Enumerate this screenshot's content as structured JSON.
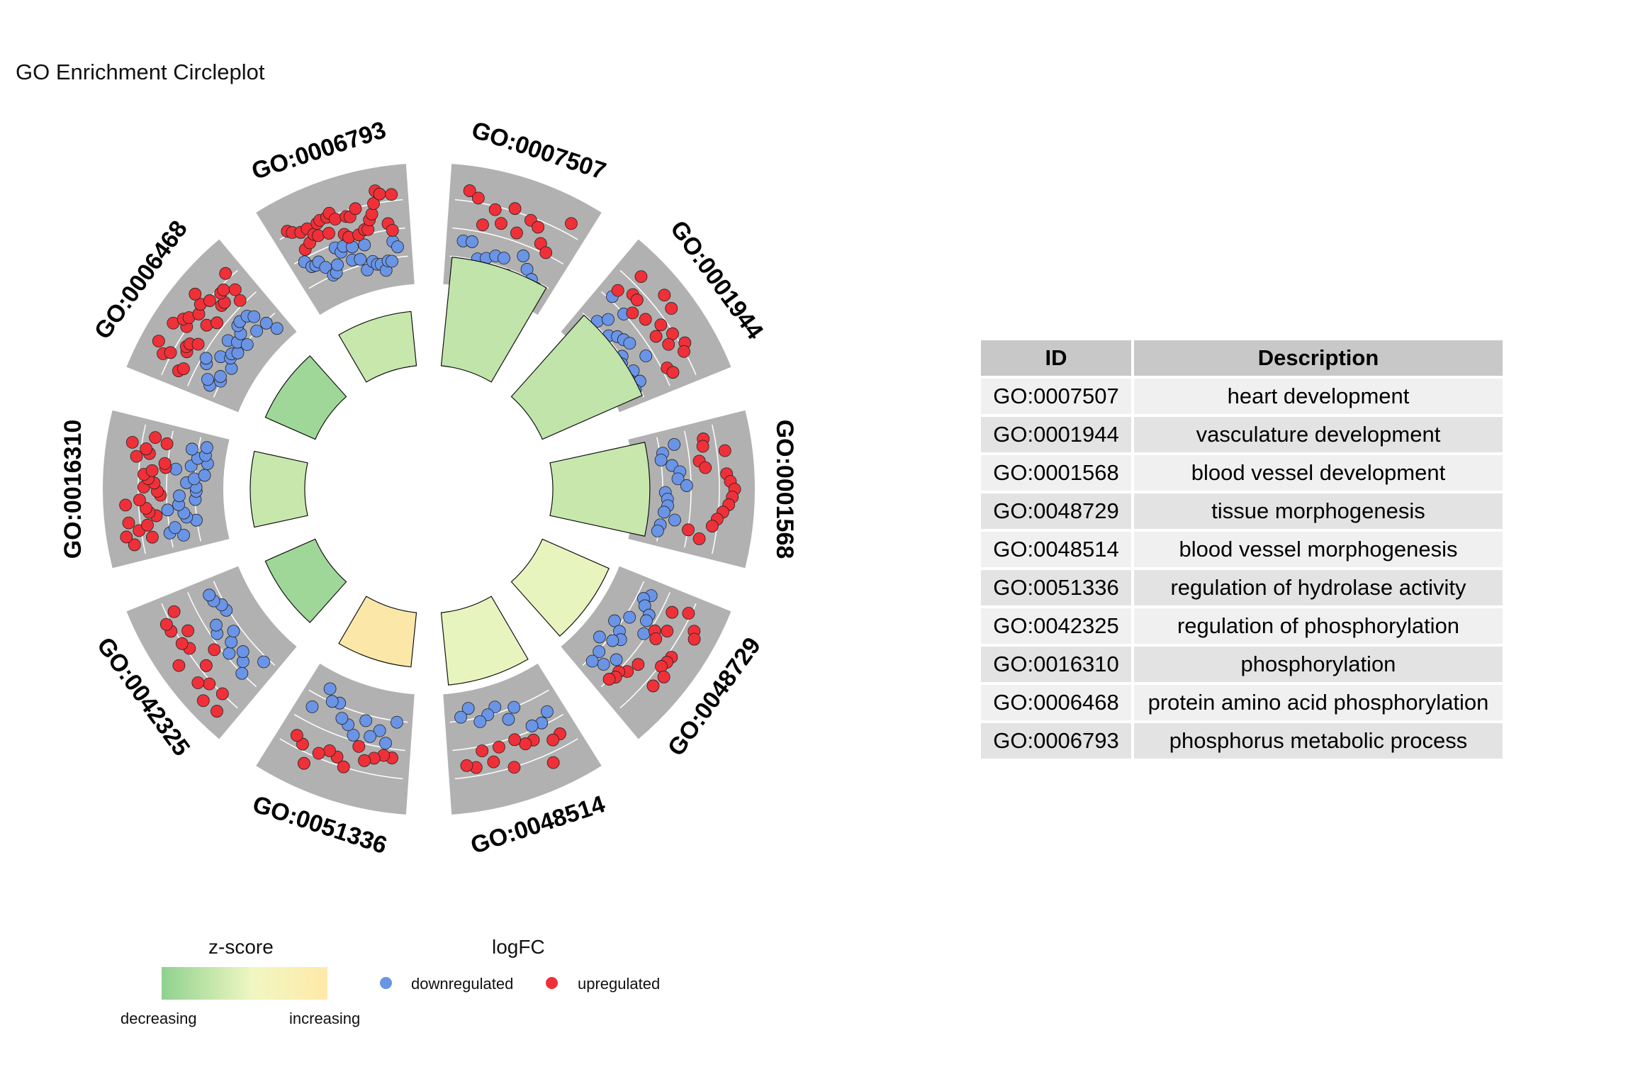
{
  "title": "GO Enrichment Circleplot",
  "colors": {
    "up": "#f03038",
    "down": "#6a94e6",
    "track_bg": "#b1b1b1",
    "zscore_low": "#8fd18f",
    "zscore_mid": "#f0f7c2",
    "zscore_high": "#ffe3a0"
  },
  "chart_data": {
    "type": "circleplot",
    "title": "GO Enrichment Circleplot",
    "terms": [
      {
        "id": "GO:0007507",
        "zscore": -0.6,
        "bar": 0.9,
        "up": 12,
        "down": 11
      },
      {
        "id": "GO:0001944",
        "zscore": -0.6,
        "bar": 0.9,
        "up": 16,
        "down": 15
      },
      {
        "id": "GO:0001568",
        "zscore": -0.5,
        "bar": 0.8,
        "up": 15,
        "down": 14
      },
      {
        "id": "GO:0048729",
        "zscore": -0.1,
        "bar": 0.6,
        "up": 17,
        "down": 16
      },
      {
        "id": "GO:0048514",
        "zscore": -0.1,
        "bar": 0.6,
        "up": 12,
        "down": 10
      },
      {
        "id": "GO:0051336",
        "zscore": 0.3,
        "bar": 0.45,
        "up": 12,
        "down": 12
      },
      {
        "id": "GO:0042325",
        "zscore": -1.0,
        "bar": 0.45,
        "up": 14,
        "down": 13
      },
      {
        "id": "GO:0016310",
        "zscore": -0.5,
        "bar": 0.45,
        "up": 26,
        "down": 22
      },
      {
        "id": "GO:0006468",
        "zscore": -1.0,
        "bar": 0.45,
        "up": 26,
        "down": 22
      },
      {
        "id": "GO:0006793",
        "zscore": -0.5,
        "bar": 0.45,
        "up": 30,
        "down": 24
      }
    ]
  },
  "table": {
    "headers": [
      "ID",
      "Description"
    ],
    "rows": [
      {
        "id": "GO:0007507",
        "description": "heart development"
      },
      {
        "id": "GO:0001944",
        "description": "vasculature development"
      },
      {
        "id": "GO:0001568",
        "description": "blood vessel development"
      },
      {
        "id": "GO:0048729",
        "description": "tissue morphogenesis"
      },
      {
        "id": "GO:0048514",
        "description": "blood vessel morphogenesis"
      },
      {
        "id": "GO:0051336",
        "description": "regulation of hydrolase activity"
      },
      {
        "id": "GO:0042325",
        "description": "regulation of phosphorylation"
      },
      {
        "id": "GO:0016310",
        "description": "phosphorylation"
      },
      {
        "id": "GO:0006468",
        "description": "protein amino acid phosphorylation"
      },
      {
        "id": "GO:0006793",
        "description": "phosphorus metabolic process"
      }
    ]
  },
  "legend": {
    "zscore_title": "z-score",
    "zscore_low": "decreasing",
    "zscore_high": "increasing",
    "logfc_title": "logFC",
    "down_label": "downregulated",
    "up_label": "upregulated"
  }
}
